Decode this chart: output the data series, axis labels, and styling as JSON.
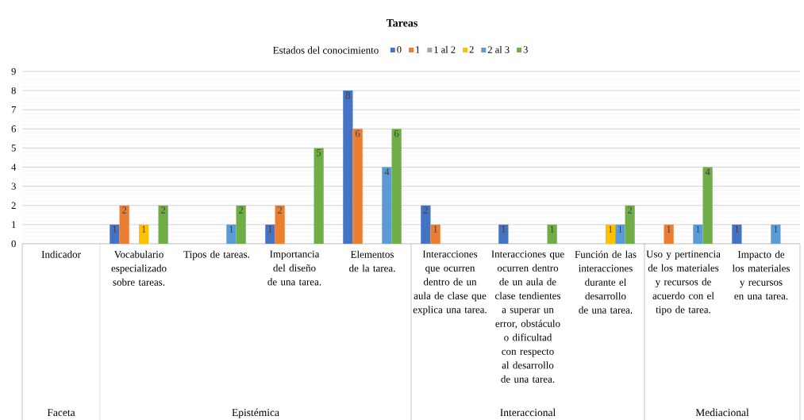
{
  "chart_data": {
    "type": "bar",
    "title": "Tareas",
    "legend_title": "Estados del conocimiento",
    "categories": [
      "Indicador",
      "Vocabulario especializado sobre tareas.",
      "Tipos de tareas.",
      "Importancia del diseño de una tarea.",
      "Elementos de la tarea.",
      "Interacciones que ocurren dentro de un aula de clase que explica una tarea.",
      "Interacciones que ocurren dentro de un aula de clase tendientes a superar un error, obstáculo o dificultad con respecto al desarrollo de una tarea.",
      "Función de las interacciones durante el desarrollo de una tarea.",
      "Uso y pertinencia de los materiales y recursos de acuerdo con el tipo de tarea.",
      "Impacto de los materiales y recursos en una tarea."
    ],
    "series": [
      {
        "name": "0",
        "color": "#4472c4",
        "values": [
          null,
          1,
          null,
          1,
          8,
          2,
          1,
          null,
          null,
          1
        ]
      },
      {
        "name": "1",
        "color": "#ed7d31",
        "values": [
          null,
          2,
          null,
          2,
          6,
          1,
          null,
          null,
          1,
          null
        ]
      },
      {
        "name": "1 al 2",
        "color": "#a5a5a5",
        "values": [
          null,
          null,
          null,
          null,
          null,
          null,
          null,
          null,
          null,
          null
        ]
      },
      {
        "name": "2",
        "color": "#ffc000",
        "values": [
          null,
          1,
          null,
          null,
          null,
          null,
          null,
          1,
          null,
          null
        ]
      },
      {
        "name": "2 al 3",
        "color": "#5b9bd5",
        "values": [
          null,
          null,
          1,
          null,
          4,
          null,
          null,
          1,
          1,
          1
        ]
      },
      {
        "name": "3",
        "color": "#70ad47",
        "values": [
          null,
          2,
          2,
          5,
          6,
          null,
          1,
          2,
          4,
          null
        ]
      }
    ],
    "annotations": [
      "Faceta",
      "Epistémica",
      "Interaccional",
      "Mediacional"
    ],
    "ylim": [
      0,
      9
    ],
    "yticks": [
      0,
      1,
      2,
      3,
      4,
      5,
      6,
      7,
      8,
      9
    ],
    "grid": "y",
    "legend": "top",
    "data_labels": true
  }
}
